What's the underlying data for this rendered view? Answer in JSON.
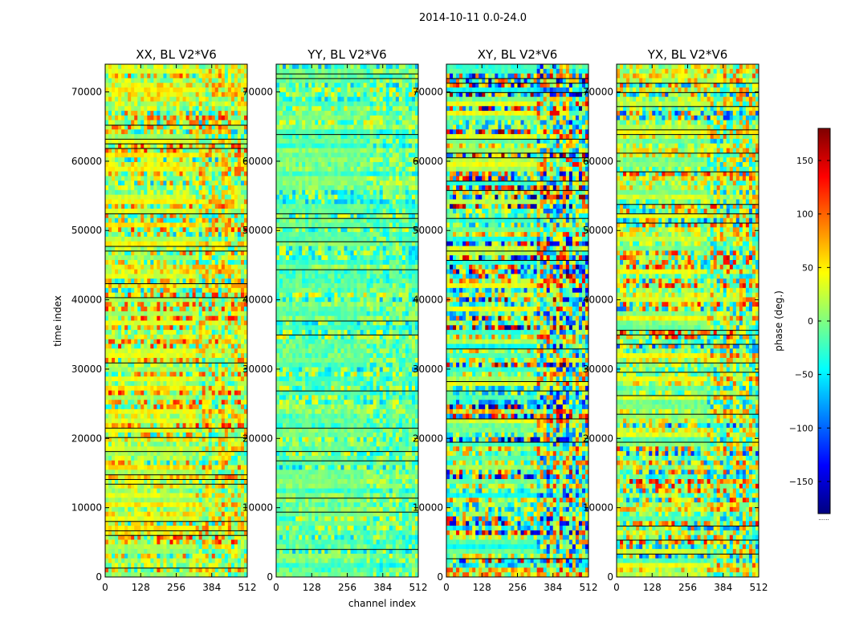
{
  "chart_data": {
    "type": "heatmap",
    "title": "2014-10-11 0.0-24.0",
    "xlabel": "channel index",
    "ylabel": "time index",
    "xlim": [
      0,
      512
    ],
    "ylim": [
      0,
      74000
    ],
    "xticks": [
      0,
      128,
      256,
      384,
      512
    ],
    "yticks": [
      0,
      10000,
      20000,
      30000,
      40000,
      50000,
      60000,
      70000
    ],
    "panels": [
      {
        "name": "XX, BL V2*V6",
        "mean_phase_deg": 30,
        "spread": 0.55,
        "band_edge_channel": 320
      },
      {
        "name": "YY, BL V2*V6",
        "mean_phase_deg": -10,
        "spread": 0.35,
        "band_edge_channel": 320
      },
      {
        "name": "XY, BL V2*V6",
        "mean_phase_deg": 0,
        "spread": 1.0,
        "band_edge_channel": 320
      },
      {
        "name": "YX, BL V2*V6",
        "mean_phase_deg": 15,
        "spread": 0.7,
        "band_edge_channel": 320
      }
    ],
    "colorbar": {
      "label": "phase (deg.)",
      "range": [
        -180,
        180
      ],
      "ticks": [
        -150,
        -100,
        -50,
        0,
        50,
        100,
        150
      ],
      "colormap": "jet",
      "under_label": "......"
    }
  }
}
